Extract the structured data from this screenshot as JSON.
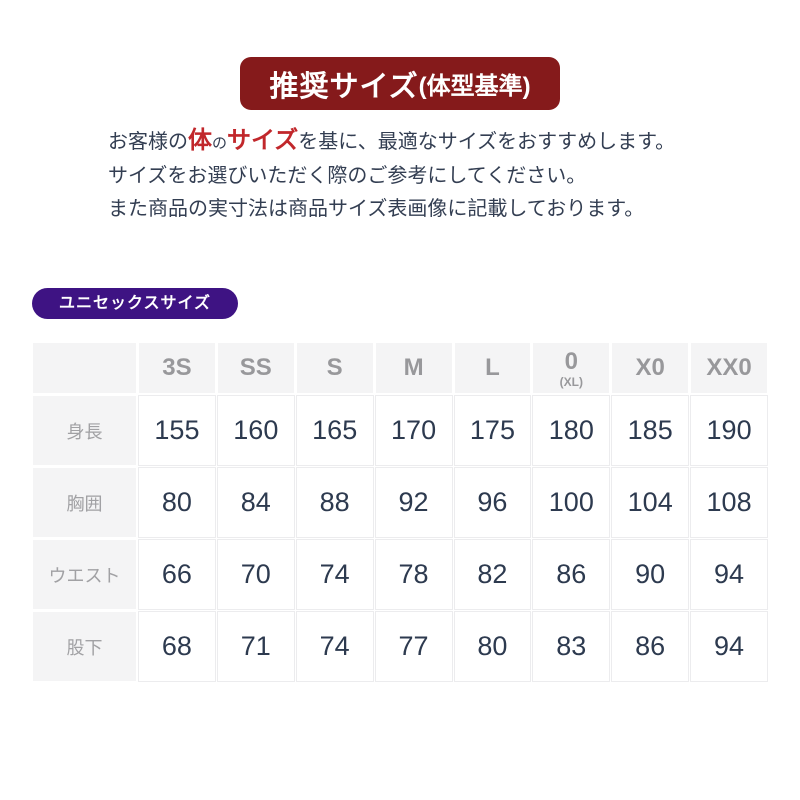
{
  "banner": {
    "title_main": "推奨サイズ",
    "title_sub": "(体型基準)",
    "bg_color": "#851a1b",
    "text_color": "#ffffff"
  },
  "intro": {
    "line1_pre": "お客様の",
    "line1_emphasis1": "体",
    "line1_joiner": "の",
    "line1_emphasis2": "サイズ",
    "line1_post": "を基に、最適なサイズをおすすめします。",
    "line2": "サイズをお選びいただく際のご参考にしてください。",
    "line3": "また商品の実寸法は商品サイズ表画像に記載しております。",
    "emphasis_color": "#c1272b",
    "text_color": "#333e52"
  },
  "badge": {
    "label": "ユニセックスサイズ",
    "bg_color": "#3e1383",
    "text_color": "#ffffff"
  },
  "chart_data": {
    "type": "table",
    "title": "ユニセックスサイズ",
    "column_labels_main": [
      "3S",
      "SS",
      "S",
      "M",
      "L",
      "0",
      "X0",
      "XX0"
    ],
    "column_labels_sub": [
      "",
      "",
      "",
      "",
      "",
      "(XL)",
      "",
      ""
    ],
    "row_labels": [
      "身長",
      "胸囲",
      "ウエスト",
      "股下"
    ],
    "rows": [
      [
        155,
        160,
        165,
        170,
        175,
        180,
        185,
        190
      ],
      [
        80,
        84,
        88,
        92,
        96,
        100,
        104,
        108
      ],
      [
        66,
        70,
        74,
        78,
        82,
        86,
        90,
        94
      ],
      [
        68,
        71,
        74,
        77,
        80,
        83,
        86,
        94
      ]
    ],
    "layout": {
      "header_bg": "#f4f4f5",
      "header_text": "#98989b",
      "cell_bg": "#ffffff",
      "cell_text": "#2d3a4f",
      "grid_line": "#ececee"
    }
  }
}
